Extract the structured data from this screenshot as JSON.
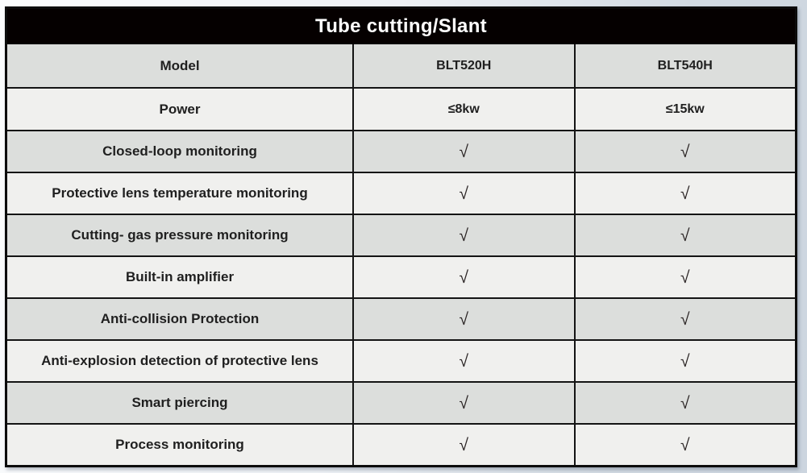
{
  "title": "Tube cutting/Slant",
  "header": {
    "model_label": "Model",
    "models": [
      "BLT520H",
      "BLT540H"
    ]
  },
  "rows": [
    {
      "label": "Power",
      "values": [
        "≤8kw",
        "≤15kw"
      ],
      "is_check": false
    },
    {
      "label": "Closed-loop monitoring",
      "values": [
        "√",
        "√"
      ],
      "is_check": true
    },
    {
      "label": "Protective lens temperature monitoring",
      "values": [
        "√",
        "√"
      ],
      "is_check": true
    },
    {
      "label": "Cutting- gas pressure monitoring",
      "values": [
        "√",
        "√"
      ],
      "is_check": true
    },
    {
      "label": "Built-in amplifier",
      "values": [
        "√",
        "√"
      ],
      "is_check": true
    },
    {
      "label": "Anti-collision Protection",
      "values": [
        "√",
        "√"
      ],
      "is_check": true
    },
    {
      "label": "Anti-explosion detection of protective lens",
      "values": [
        "√",
        "√"
      ],
      "is_check": true
    },
    {
      "label": "Smart piercing",
      "values": [
        "√",
        "√"
      ],
      "is_check": true
    },
    {
      "label": "Process monitoring",
      "values": [
        "√",
        "√"
      ],
      "is_check": true
    }
  ],
  "colors": {
    "title_bg": "#050000",
    "title_text": "#ffffff",
    "row_dark": "#dcdedc",
    "row_light": "#f0f0ee",
    "border": "#141414",
    "cell_text": "#1f1f1f"
  }
}
